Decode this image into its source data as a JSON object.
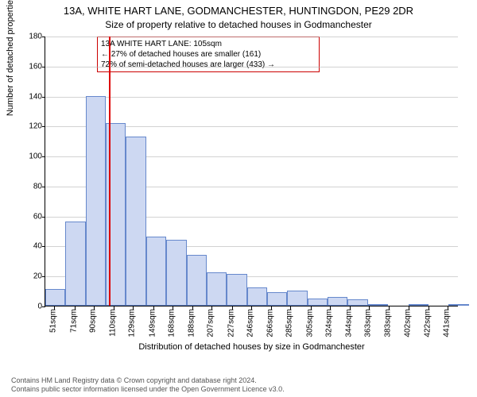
{
  "title_main": "13A, WHITE HART LANE, GODMANCHESTER, HUNTINGDON, PE29 2DR",
  "title_sub": "Size of property relative to detached houses in Godmanchester",
  "yaxis_label": "Number of detached properties",
  "xaxis_label": "Distribution of detached houses by size in Godmanchester",
  "footer_line1": "Contains HM Land Registry data © Crown copyright and database right 2024.",
  "footer_line2": "Contains public sector information licensed under the Open Government Licence v3.0.",
  "annotation": {
    "line1": "13A WHITE HART LANE: 105sqm",
    "line2": "← 27% of detached houses are smaller (161)",
    "line3": "72% of semi-detached houses are larger (433) →"
  },
  "chart": {
    "type": "histogram",
    "bar_fill": "#cdd8f2",
    "bar_border": "#6688cc",
    "grid_color": "rgba(180,180,180,0.6)",
    "background_color": "#ffffff",
    "marker_color": "#dd0000",
    "annotation_border": "#cc0000",
    "ylim": [
      0,
      180
    ],
    "ytick_step": 20,
    "yticks": [
      0,
      20,
      40,
      60,
      80,
      100,
      120,
      140,
      160,
      180
    ],
    "x_min": 42,
    "x_max": 452,
    "xticks": [
      51,
      71,
      90,
      110,
      129,
      149,
      168,
      188,
      207,
      227,
      246,
      266,
      285,
      305,
      324,
      344,
      363,
      383,
      402,
      422,
      441
    ],
    "xtick_unit": "sqm",
    "bar_width_data": 20,
    "marker_x": 105,
    "bars": [
      {
        "x0": 42,
        "h": 11
      },
      {
        "x0": 62,
        "h": 56
      },
      {
        "x0": 82,
        "h": 140
      },
      {
        "x0": 102,
        "h": 122
      },
      {
        "x0": 122,
        "h": 113
      },
      {
        "x0": 142,
        "h": 46
      },
      {
        "x0": 162,
        "h": 44
      },
      {
        "x0": 182,
        "h": 34
      },
      {
        "x0": 202,
        "h": 22
      },
      {
        "x0": 222,
        "h": 21
      },
      {
        "x0": 242,
        "h": 12
      },
      {
        "x0": 262,
        "h": 9
      },
      {
        "x0": 282,
        "h": 10
      },
      {
        "x0": 302,
        "h": 5
      },
      {
        "x0": 322,
        "h": 6
      },
      {
        "x0": 342,
        "h": 4
      },
      {
        "x0": 362,
        "h": 1
      },
      {
        "x0": 382,
        "h": 0
      },
      {
        "x0": 402,
        "h": 1
      },
      {
        "x0": 422,
        "h": 0
      },
      {
        "x0": 442,
        "h": 1
      }
    ]
  }
}
